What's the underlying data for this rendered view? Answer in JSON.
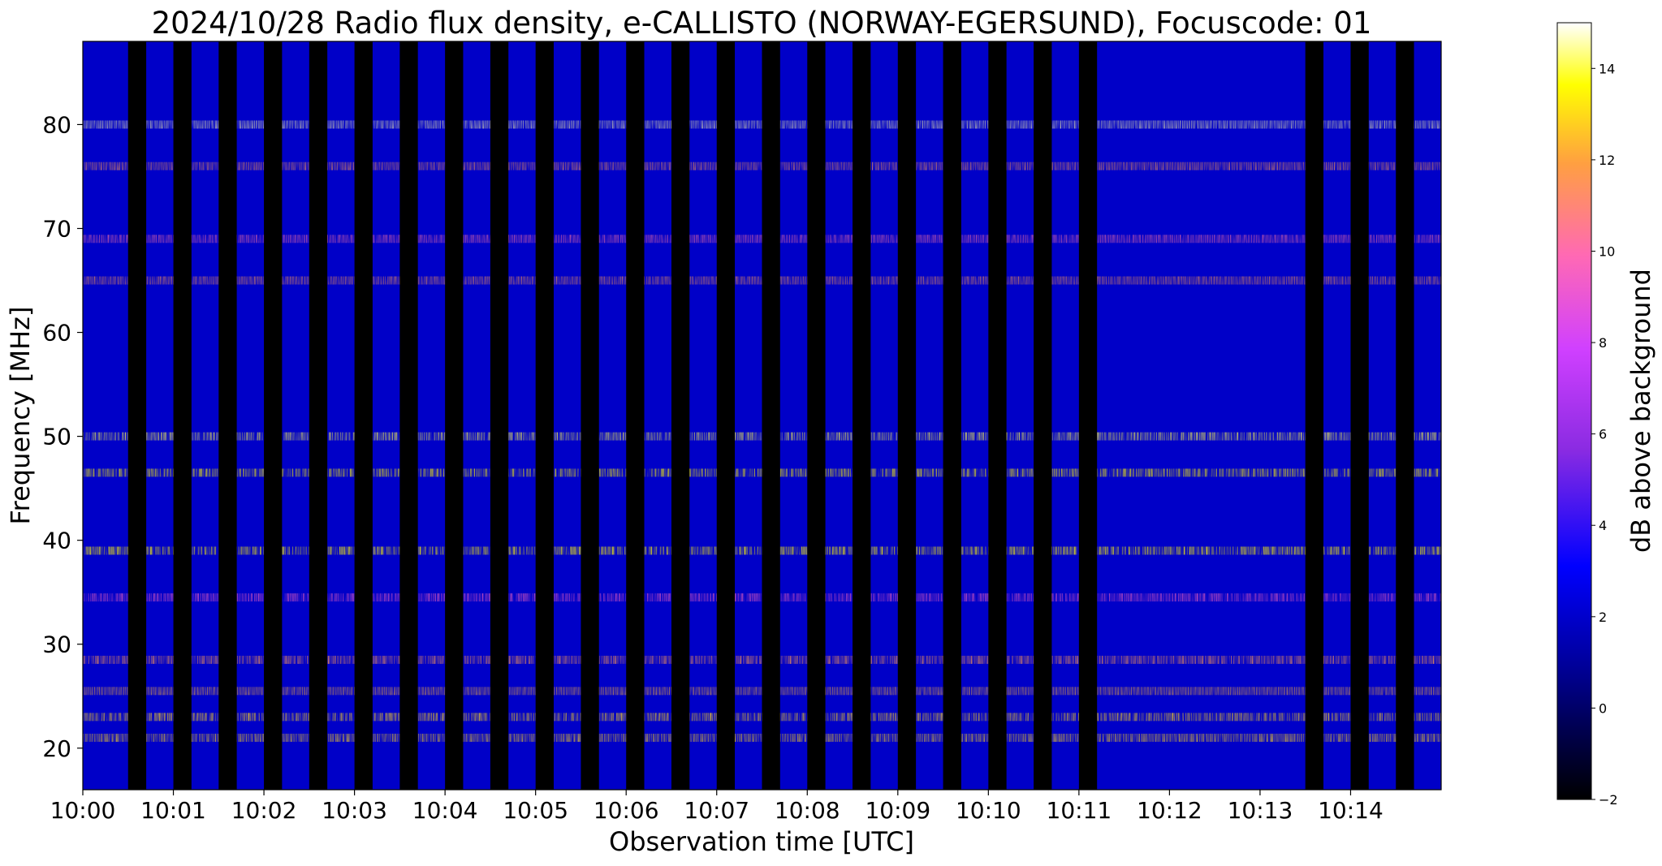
{
  "chart_data": {
    "type": "heatmap",
    "title": "2024/10/28  Radio flux density, e-CALLISTO (NORWAY-EGERSUND), Focuscode: 01",
    "xlabel": "Observation time [UTC]",
    "ylabel": "Frequency [MHz]",
    "x_range_minutes": [
      0,
      15
    ],
    "x_ticks": [
      {
        "min": 0,
        "label": "10:00"
      },
      {
        "min": 1,
        "label": "10:01"
      },
      {
        "min": 2,
        "label": "10:02"
      },
      {
        "min": 3,
        "label": "10:03"
      },
      {
        "min": 4,
        "label": "10:04"
      },
      {
        "min": 5,
        "label": "10:05"
      },
      {
        "min": 6,
        "label": "10:06"
      },
      {
        "min": 7,
        "label": "10:07"
      },
      {
        "min": 8,
        "label": "10:08"
      },
      {
        "min": 9,
        "label": "10:09"
      },
      {
        "min": 10,
        "label": "10:10"
      },
      {
        "min": 11,
        "label": "10:11"
      },
      {
        "min": 12,
        "label": "10:12"
      },
      {
        "min": 13,
        "label": "10:13"
      },
      {
        "min": 14,
        "label": "10:14"
      }
    ],
    "ylim": [
      16,
      88
    ],
    "y_ticks": [
      {
        "v": 20,
        "label": "20"
      },
      {
        "v": 30,
        "label": "30"
      },
      {
        "v": 40,
        "label": "40"
      },
      {
        "v": 50,
        "label": "50"
      },
      {
        "v": 60,
        "label": "60"
      },
      {
        "v": 70,
        "label": "70"
      },
      {
        "v": 80,
        "label": "80"
      }
    ],
    "colorbar": {
      "label": "dB above background",
      "range": [
        -2,
        15
      ],
      "ticks": [
        {
          "v": -2,
          "label": "−2"
        },
        {
          "v": 0,
          "label": "0"
        },
        {
          "v": 2,
          "label": "2"
        },
        {
          "v": 4,
          "label": "4"
        },
        {
          "v": 6,
          "label": "6"
        },
        {
          "v": 8,
          "label": "8"
        },
        {
          "v": 10,
          "label": "10"
        },
        {
          "v": 12,
          "label": "12"
        },
        {
          "v": 14,
          "label": "14"
        }
      ],
      "colormap": "gnuplot2",
      "stops": [
        "#000000",
        "#0000ff",
        "#8a2be2",
        "#ff69b4",
        "#ffa040",
        "#ffff00",
        "#ffffff"
      ]
    },
    "bright_bands_mhz": [
      {
        "f": 80,
        "db": 14
      },
      {
        "f": 76,
        "db": 9
      },
      {
        "f": 69,
        "db": 7
      },
      {
        "f": 65,
        "db": 9
      },
      {
        "f": 50,
        "db": 13
      },
      {
        "f": 46.5,
        "db": 12
      },
      {
        "f": 39,
        "db": 12
      },
      {
        "f": 34.5,
        "db": 6
      },
      {
        "f": 28.5,
        "db": 9
      },
      {
        "f": 25.5,
        "db": 10
      },
      {
        "f": 23,
        "db": 11
      },
      {
        "f": 21,
        "db": 11
      }
    ],
    "gap_intervals_min": [
      [
        0.5,
        0.7
      ],
      [
        1.0,
        1.2
      ],
      [
        1.5,
        1.7
      ],
      [
        2.0,
        2.2
      ],
      [
        2.5,
        2.7
      ],
      [
        3.0,
        3.2
      ],
      [
        3.5,
        3.7
      ],
      [
        4.0,
        4.2
      ],
      [
        4.5,
        4.7
      ],
      [
        5.0,
        5.2
      ],
      [
        5.5,
        5.7
      ],
      [
        6.0,
        6.2
      ],
      [
        6.5,
        6.7
      ],
      [
        7.0,
        7.2
      ],
      [
        7.5,
        7.7
      ],
      [
        8.0,
        8.2
      ],
      [
        8.5,
        8.7
      ],
      [
        9.0,
        9.2
      ],
      [
        9.5,
        9.7
      ],
      [
        10.0,
        10.2
      ],
      [
        10.5,
        10.7
      ],
      [
        11.0,
        11.2
      ],
      [
        13.5,
        13.7
      ],
      [
        14.0,
        14.2
      ],
      [
        14.5,
        14.7
      ]
    ]
  }
}
